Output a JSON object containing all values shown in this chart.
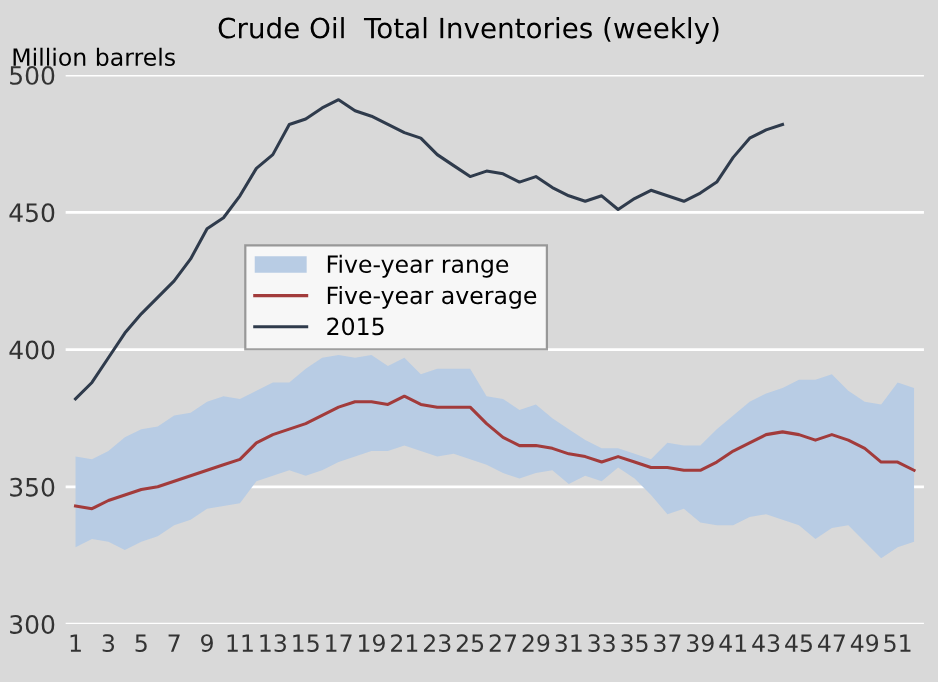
{
  "chart_data": {
    "type": "line",
    "title": "Crude Oil  Total Inventories (weekly)",
    "ylabel": "Million barrels",
    "categories": [
      "1",
      null,
      "3",
      null,
      "5",
      null,
      "7",
      null,
      "9",
      null,
      "11",
      null,
      "13",
      null,
      "15",
      null,
      "17",
      null,
      "19",
      null,
      "21",
      null,
      "23",
      null,
      "25",
      null,
      "27",
      null,
      "29",
      null,
      "31",
      null,
      "33",
      null,
      "35",
      null,
      "37",
      null,
      "39",
      null,
      "41",
      null,
      "43",
      null,
      "45",
      null,
      "47",
      null,
      "49",
      null,
      "51",
      null
    ],
    "series": [
      {
        "name": "Five-year range",
        "type": "area",
        "color": "#b8cce4",
        "lower": [
          328,
          331,
          330,
          327,
          330,
          332,
          336,
          338,
          342,
          343,
          344,
          352,
          354,
          356,
          354,
          356,
          359,
          361,
          363,
          363,
          365,
          363,
          361,
          362,
          360,
          358,
          355,
          353,
          355,
          356,
          351,
          354,
          352,
          357,
          353,
          347,
          340,
          342,
          337,
          336,
          336,
          339,
          340,
          338,
          336,
          331,
          335,
          336,
          330,
          324,
          328,
          330
        ],
        "upper": [
          361,
          360,
          363,
          368,
          371,
          372,
          376,
          377,
          381,
          383,
          382,
          385,
          388,
          388,
          393,
          397,
          398,
          397,
          398,
          394,
          397,
          391,
          393,
          393,
          393,
          383,
          382,
          378,
          380,
          375,
          371,
          367,
          364,
          364,
          362,
          360,
          366,
          365,
          365,
          371,
          376,
          381,
          384,
          386,
          389,
          389,
          391,
          385,
          381,
          380,
          388,
          386
        ],
        "values": [
          null,
          null,
          null,
          null,
          null,
          null,
          null,
          null,
          null,
          null,
          null,
          null,
          null,
          null,
          null,
          null,
          null,
          null,
          null,
          null,
          null,
          null,
          null,
          null,
          null,
          null,
          null,
          null,
          null,
          null,
          null,
          null,
          null,
          null,
          null,
          null,
          null,
          null,
          null,
          null,
          null,
          null,
          null,
          null,
          null,
          null,
          null,
          null,
          null,
          null,
          null,
          null
        ]
      },
      {
        "name": "Five-year average",
        "type": "line",
        "color": "#a23b3b",
        "values": [
          343,
          342,
          345,
          347,
          349,
          350,
          352,
          354,
          356,
          358,
          360,
          366,
          369,
          371,
          373,
          376,
          379,
          381,
          381,
          380,
          383,
          380,
          379,
          379,
          379,
          373,
          368,
          365,
          365,
          364,
          362,
          361,
          359,
          361,
          359,
          357,
          357,
          356,
          356,
          359,
          363,
          366,
          369,
          370,
          369,
          367,
          369,
          367,
          364,
          359,
          359,
          356
        ]
      },
      {
        "name": "2015",
        "type": "line",
        "color": "#2f3b4c",
        "values": [
          382,
          388,
          397,
          406,
          413,
          419,
          425,
          433,
          444,
          448,
          456,
          466,
          471,
          482,
          484,
          488,
          491,
          487,
          485,
          482,
          479,
          477,
          471,
          467,
          463,
          465,
          464,
          461,
          463,
          459,
          456,
          454,
          456,
          451,
          455,
          458,
          456,
          454,
          457,
          461,
          470,
          477,
          480,
          482,
          null,
          null,
          null,
          null,
          null,
          null,
          null,
          null
        ]
      }
    ],
    "ylim": [
      300,
      500
    ],
    "yticks": [
      300,
      350,
      400,
      450,
      500
    ],
    "grid": "y",
    "legend": "center"
  }
}
